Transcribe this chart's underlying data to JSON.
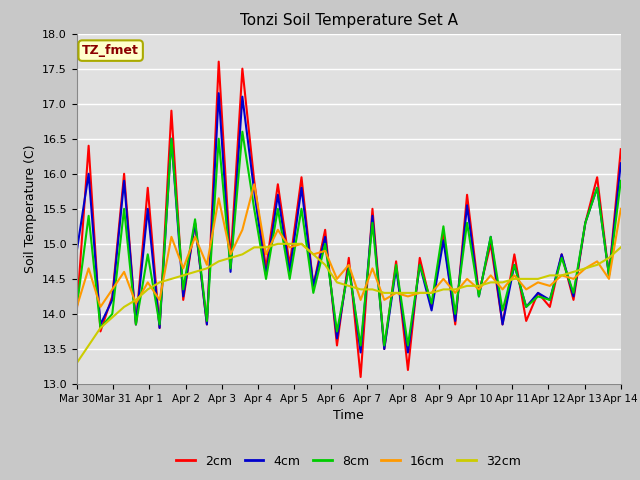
{
  "title": "Tonzi Soil Temperature Set A",
  "xlabel": "Time",
  "ylabel": "Soil Temperature (C)",
  "ylim": [
    13.0,
    18.0
  ],
  "yticks": [
    13.0,
    13.5,
    14.0,
    14.5,
    15.0,
    15.5,
    16.0,
    16.5,
    17.0,
    17.5,
    18.0
  ],
  "xtick_labels": [
    "Mar 30",
    "Mar 31",
    "Apr 1",
    "Apr 2",
    "Apr 3",
    "Apr 4",
    "Apr 5",
    "Apr 6",
    "Apr 7",
    "Apr 8",
    "Apr 9",
    "Apr 10",
    "Apr 11",
    "Apr 12",
    "Apr 13",
    "Apr 14"
  ],
  "fig_bg_color": "#c8c8c8",
  "plot_bg_color": "#e0e0e0",
  "annotation_text": "TZ_fmet",
  "annotation_bg": "#ffffcc",
  "annotation_border": "#aaaa00",
  "legend_labels": [
    "2cm",
    "4cm",
    "8cm",
    "16cm",
    "32cm"
  ],
  "legend_colors": [
    "#ff0000",
    "#0000cc",
    "#00cc00",
    "#ff9900",
    "#cccc00"
  ],
  "line_width": 1.5,
  "series_2cm": [
    14.05,
    16.4,
    13.75,
    14.25,
    16.0,
    13.85,
    15.8,
    13.8,
    16.9,
    14.2,
    15.3,
    13.85,
    17.6,
    14.75,
    17.5,
    15.9,
    14.65,
    15.85,
    14.7,
    15.95,
    14.4,
    15.2,
    13.55,
    14.8,
    13.1,
    15.5,
    13.5,
    14.75,
    13.2,
    14.8,
    14.1,
    15.15,
    13.85,
    15.7,
    14.3,
    15.0,
    13.85,
    14.85,
    13.9,
    14.3,
    14.1,
    14.85,
    14.2,
    15.3,
    15.95,
    14.55,
    16.35
  ],
  "series_4cm": [
    14.9,
    16.0,
    13.85,
    14.2,
    15.9,
    13.85,
    15.5,
    13.8,
    16.5,
    14.25,
    15.3,
    13.85,
    17.15,
    14.6,
    17.1,
    15.75,
    14.55,
    15.7,
    14.6,
    15.8,
    14.4,
    15.1,
    13.65,
    14.7,
    13.45,
    15.4,
    13.5,
    14.65,
    13.45,
    14.7,
    14.05,
    15.05,
    13.9,
    15.55,
    14.25,
    15.1,
    13.85,
    14.7,
    14.1,
    14.3,
    14.2,
    14.85,
    14.25,
    15.3,
    15.8,
    14.55,
    16.15
  ],
  "series_8cm": [
    14.1,
    15.4,
    13.8,
    14.0,
    15.5,
    13.85,
    14.85,
    13.85,
    16.5,
    14.35,
    15.35,
    13.9,
    16.5,
    14.65,
    16.6,
    15.5,
    14.5,
    15.5,
    14.5,
    15.5,
    14.3,
    15.0,
    13.75,
    14.65,
    13.55,
    15.3,
    13.55,
    14.7,
    13.55,
    14.7,
    14.15,
    15.25,
    14.0,
    15.3,
    14.25,
    15.1,
    14.05,
    14.7,
    14.1,
    14.25,
    14.2,
    14.8,
    14.3,
    15.3,
    15.8,
    14.55,
    15.9
  ],
  "series_16cm": [
    14.1,
    14.65,
    14.1,
    14.35,
    14.6,
    14.15,
    14.45,
    14.2,
    15.1,
    14.65,
    15.1,
    14.7,
    15.65,
    14.85,
    15.2,
    15.85,
    14.85,
    15.2,
    14.95,
    15.0,
    14.85,
    14.9,
    14.5,
    14.7,
    14.2,
    14.65,
    14.2,
    14.3,
    14.25,
    14.3,
    14.3,
    14.5,
    14.3,
    14.5,
    14.35,
    14.55,
    14.35,
    14.55,
    14.35,
    14.45,
    14.4,
    14.55,
    14.5,
    14.65,
    14.75,
    14.5,
    15.5
  ],
  "series_32cm": [
    13.3,
    13.55,
    13.8,
    13.95,
    14.1,
    14.2,
    14.35,
    14.45,
    14.5,
    14.55,
    14.6,
    14.65,
    14.75,
    14.8,
    14.85,
    14.95,
    14.95,
    15.0,
    15.0,
    15.0,
    14.85,
    14.7,
    14.45,
    14.4,
    14.35,
    14.35,
    14.3,
    14.3,
    14.3,
    14.3,
    14.3,
    14.35,
    14.35,
    14.4,
    14.4,
    14.45,
    14.45,
    14.5,
    14.5,
    14.5,
    14.55,
    14.55,
    14.6,
    14.65,
    14.7,
    14.8,
    14.95
  ]
}
